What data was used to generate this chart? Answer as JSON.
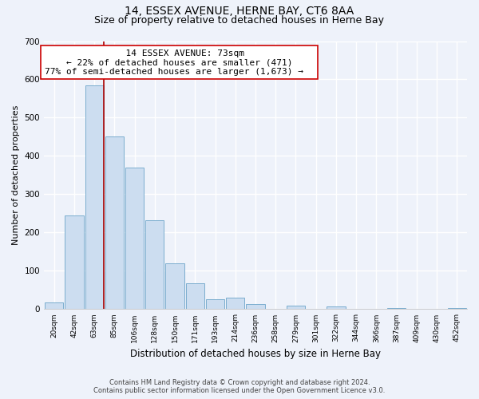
{
  "title": "14, ESSEX AVENUE, HERNE BAY, CT6 8AA",
  "subtitle": "Size of property relative to detached houses in Herne Bay",
  "xlabel": "Distribution of detached houses by size in Herne Bay",
  "ylabel": "Number of detached properties",
  "bar_labels": [
    "20sqm",
    "42sqm",
    "63sqm",
    "85sqm",
    "106sqm",
    "128sqm",
    "150sqm",
    "171sqm",
    "193sqm",
    "214sqm",
    "236sqm",
    "258sqm",
    "279sqm",
    "301sqm",
    "322sqm",
    "344sqm",
    "366sqm",
    "387sqm",
    "409sqm",
    "430sqm",
    "452sqm"
  ],
  "bar_values": [
    18,
    245,
    585,
    450,
    370,
    232,
    120,
    67,
    25,
    30,
    13,
    0,
    10,
    0,
    8,
    0,
    0,
    3,
    0,
    0,
    2
  ],
  "bar_color": "#ccddf0",
  "bar_edge_color": "#7aadce",
  "vline_x_index": 2,
  "vline_color": "#aa0000",
  "ylim": [
    0,
    700
  ],
  "yticks": [
    0,
    100,
    200,
    300,
    400,
    500,
    600,
    700
  ],
  "annotation_title": "14 ESSEX AVENUE: 73sqm",
  "annotation_line1": "← 22% of detached houses are smaller (471)",
  "annotation_line2": "77% of semi-detached houses are larger (1,673) →",
  "annotation_box_color": "#ffffff",
  "annotation_box_edge": "#cc0000",
  "footer1": "Contains HM Land Registry data © Crown copyright and database right 2024.",
  "footer2": "Contains public sector information licensed under the Open Government Licence v3.0.",
  "background_color": "#eef2fa",
  "grid_color": "#ffffff",
  "title_fontsize": 10,
  "subtitle_fontsize": 9,
  "ylabel_fontsize": 8,
  "xlabel_fontsize": 8.5
}
